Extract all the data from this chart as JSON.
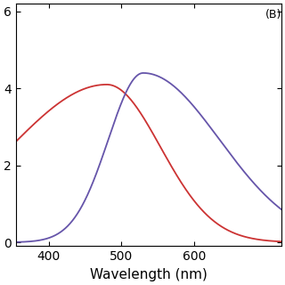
{
  "annotation": "(B)",
  "xlabel": "Wavelength (nm)",
  "xlim": [
    355,
    720
  ],
  "ylim": [
    -0.1,
    6.2
  ],
  "yticks": [
    0,
    2,
    4,
    6
  ],
  "xticks": [
    400,
    500,
    600
  ],
  "red_color": "#cc3333",
  "purple_color": "#6655aa",
  "background_color": "#ffffff",
  "tick_label_fontsize": 10,
  "xlabel_fontsize": 11,
  "linewidth": 1.3
}
